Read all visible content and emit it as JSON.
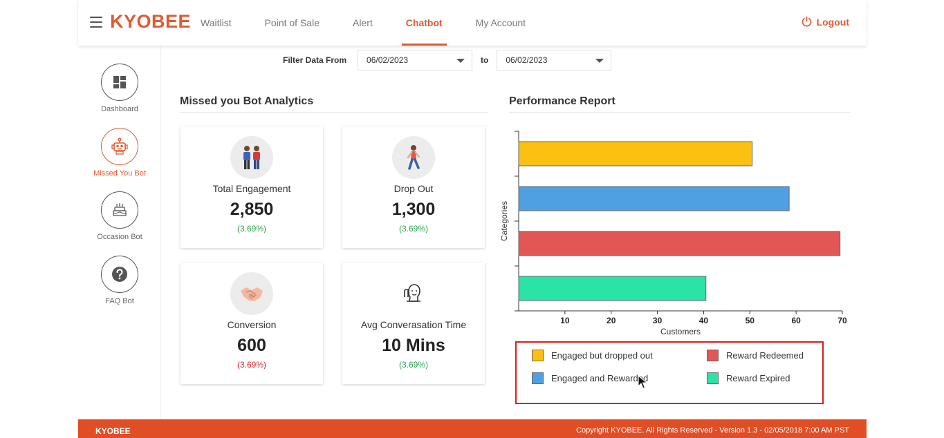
{
  "header": {
    "logo": "KYOBEE",
    "nav": [
      {
        "label": "Waitlist",
        "active": false
      },
      {
        "label": "Point of Sale",
        "active": false
      },
      {
        "label": "Alert",
        "active": false
      },
      {
        "label": "Chatbot",
        "active": true
      },
      {
        "label": "My Account",
        "active": false
      }
    ],
    "logout_label": "Logout",
    "accent_color": "#e05a33"
  },
  "sidebar": {
    "items": [
      {
        "label": "Dashboard",
        "icon": "dashboard-icon",
        "active": false
      },
      {
        "label": "Missed You Bot",
        "icon": "robot-icon",
        "active": true
      },
      {
        "label": "Occasion Bot",
        "icon": "cake-icon",
        "active": false
      },
      {
        "label": "FAQ Bot",
        "icon": "question-icon",
        "active": false
      }
    ]
  },
  "filter": {
    "label": "Filter Data From",
    "from": "06/02/2023",
    "to_label": "to",
    "to": "06/02/2023"
  },
  "analytics": {
    "title": "Missed you Bot Analytics",
    "cards": [
      {
        "title": "Total Engagement",
        "value": "2,850",
        "pct": "(3.69%)",
        "pct_color": "green",
        "icon": "people-icon"
      },
      {
        "title": "Drop Out",
        "value": "1,300",
        "pct": "(3.69%)",
        "pct_color": "green",
        "icon": "walking-person-icon"
      },
      {
        "title": "Conversion",
        "value": "600",
        "pct": "(3.69%)",
        "pct_color": "red",
        "icon": "handshake-icon"
      },
      {
        "title": "Avg Converasation Time",
        "value": "10 Mins",
        "pct": "(3.69%)",
        "pct_color": "green",
        "icon": "thinking-person-icon"
      }
    ]
  },
  "performance": {
    "title": "Performance Report"
  },
  "chart_data": {
    "type": "bar",
    "orientation": "horizontal",
    "title": "Performance Report",
    "xlabel": "Customers",
    "ylabel": "Categories",
    "xlim": [
      0,
      70
    ],
    "xticks": [
      10,
      20,
      30,
      40,
      50,
      60,
      70
    ],
    "grid": false,
    "legend_position": "bottom",
    "categories": [
      "Engaged but dropped out",
      "Engaged and Rewarded",
      "Reward Redeemed",
      "Reward Expired"
    ],
    "values": [
      50.5,
      58.5,
      69.5,
      40.5
    ],
    "colors": [
      "#fcc012",
      "#4fa0e3",
      "#e35656",
      "#2ae3a6"
    ]
  },
  "legend": {
    "items": [
      {
        "label": "Engaged but dropped out",
        "color": "#fcc012"
      },
      {
        "label": "Reward Redeemed",
        "color": "#e35656"
      },
      {
        "label": "Engaged and Rewarded",
        "color": "#4fa0e3"
      },
      {
        "label": "Reward Expired",
        "color": "#2ae3a6"
      }
    ]
  },
  "footer": {
    "left": "KYOBEE",
    "right": "Copyright KYOBEE. All Rights Reserved - Version 1.3 - 02/05/2018 7:00 AM PST",
    "color": "#e04e26"
  }
}
